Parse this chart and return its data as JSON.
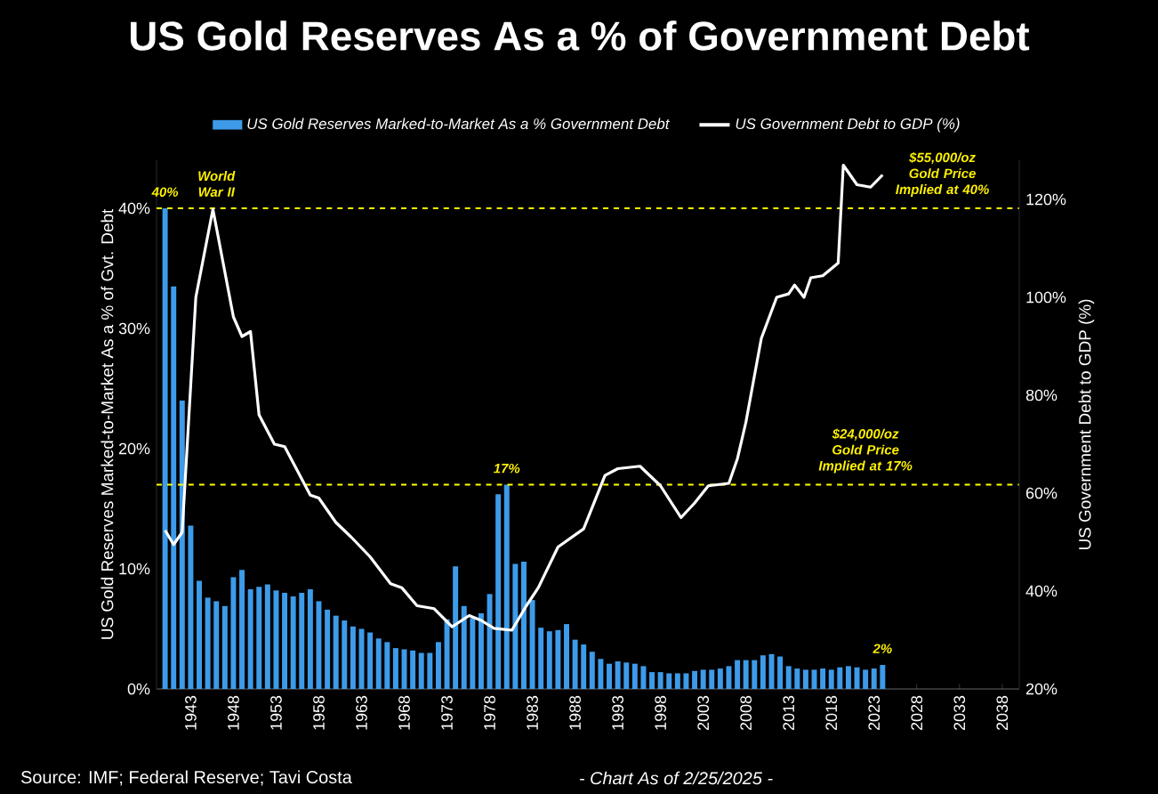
{
  "chart_data": {
    "type": "bar",
    "title": "US Gold Reserves As a % of Government Debt",
    "ylabel": "US Gold Reserves Marked-to-Market As a % of Gvt. Debt",
    "y2label": "US Government Debt to GDP (%)",
    "xlim": [
      1939,
      2040
    ],
    "xticks": [
      1943,
      1948,
      1953,
      1958,
      1963,
      1968,
      1973,
      1978,
      1983,
      1988,
      1993,
      1998,
      2003,
      2008,
      2013,
      2018,
      2023,
      2028,
      2033,
      2038
    ],
    "ylim": [
      0,
      44
    ],
    "yticks": [
      {
        "value": 0,
        "label": "0%"
      },
      {
        "value": 10,
        "label": "10%"
      },
      {
        "value": 20,
        "label": "20%"
      },
      {
        "value": 30,
        "label": "30%"
      },
      {
        "value": 40,
        "label": "40%"
      }
    ],
    "y2lim": [
      20,
      128
    ],
    "y2ticks": [
      {
        "value": 20,
        "label": "20%"
      },
      {
        "value": 40,
        "label": "40%"
      },
      {
        "value": 60,
        "label": "60%"
      },
      {
        "value": 80,
        "label": "80%"
      },
      {
        "value": 100,
        "label": "100%"
      },
      {
        "value": 120,
        "label": "120%"
      }
    ],
    "legend": "top",
    "series": [
      {
        "name": "US Gold Reserves Marked-to-Market As a % Government Debt",
        "type": "bar",
        "color": "#3d9be9",
        "x": [
          1940,
          1941,
          1942,
          1943,
          1944,
          1945,
          1946,
          1947,
          1948,
          1949,
          1950,
          1951,
          1952,
          1953,
          1954,
          1955,
          1956,
          1957,
          1958,
          1959,
          1960,
          1961,
          1962,
          1963,
          1964,
          1965,
          1966,
          1967,
          1968,
          1969,
          1970,
          1971,
          1972,
          1973,
          1974,
          1975,
          1976,
          1977,
          1978,
          1979,
          1980,
          1981,
          1982,
          1983,
          1984,
          1985,
          1986,
          1987,
          1988,
          1989,
          1990,
          1991,
          1992,
          1993,
          1994,
          1995,
          1996,
          1997,
          1998,
          1999,
          2000,
          2001,
          2002,
          2003,
          2004,
          2005,
          2006,
          2007,
          2008,
          2009,
          2010,
          2011,
          2012,
          2013,
          2014,
          2015,
          2016,
          2017,
          2018,
          2019,
          2020,
          2021,
          2022,
          2023,
          2024
        ],
        "values": [
          40,
          33.5,
          24,
          13.6,
          9.0,
          7.6,
          7.3,
          6.9,
          9.3,
          9.9,
          8.3,
          8.5,
          8.7,
          8.2,
          8.0,
          7.7,
          8.0,
          8.3,
          7.3,
          6.6,
          6.1,
          5.7,
          5.2,
          5.0,
          4.7,
          4.2,
          3.9,
          3.4,
          3.3,
          3.2,
          3.0,
          3.0,
          3.9,
          5.8,
          10.2,
          6.9,
          5.9,
          6.3,
          7.9,
          16.2,
          17,
          10.4,
          10.6,
          7.4,
          5.1,
          4.8,
          4.9,
          5.4,
          4.1,
          3.7,
          3.1,
          2.5,
          2.1,
          2.3,
          2.2,
          2.1,
          1.9,
          1.4,
          1.4,
          1.3,
          1.3,
          1.3,
          1.5,
          1.6,
          1.6,
          1.7,
          1.9,
          2.4,
          2.4,
          2.4,
          2.8,
          2.9,
          2.7,
          1.9,
          1.7,
          1.6,
          1.6,
          1.7,
          1.6,
          1.8,
          1.9,
          1.8,
          1.6,
          1.7,
          2
        ]
      },
      {
        "name": "US Government Debt to GDP (%)",
        "type": "line",
        "axis": "y2",
        "color": "#ffffff",
        "line_style": "solid",
        "x": [
          1940,
          1941,
          1942,
          1943.6,
          1945.6,
          1948,
          1949,
          1950,
          1951,
          1952.8,
          1954,
          1957,
          1958,
          1960,
          1961.8,
          1964,
          1966.4,
          1967.7,
          1969.5,
          1971.5,
          1973.6,
          1975.6,
          1977,
          1978.5,
          1980.6,
          1982.3,
          1983.7,
          1986,
          1989,
          1991.5,
          1993,
          1995.6,
          1998,
          2000.4,
          2002,
          2003.6,
          2006,
          2007,
          2008,
          2009.8,
          2011.6,
          2013,
          2013.7,
          2014.8,
          2015.6,
          2017,
          2018.8,
          2019.4,
          2021,
          2022.6,
          2024
        ],
        "values": [
          52.4,
          49.5,
          52,
          100,
          118,
          96,
          92,
          93,
          76,
          70,
          69.5,
          59.6,
          59,
          54,
          51,
          47,
          41.5,
          40.7,
          37,
          36.4,
          32.7,
          35,
          34,
          32.4,
          32,
          37,
          40.7,
          49,
          52.7,
          63.6,
          65,
          65.5,
          61.5,
          55,
          58,
          61.5,
          62,
          67,
          74.5,
          91.6,
          100,
          100.7,
          102.5,
          100,
          104,
          104.4,
          107,
          127,
          123,
          122.5,
          125
        ]
      }
    ],
    "ref_lines": [
      {
        "axis": "y",
        "value": 40,
        "color": "#ffff00",
        "line_style": "dashed"
      },
      {
        "axis": "y",
        "value": 17,
        "color": "#ffff00",
        "line_style": "dashed"
      }
    ],
    "annotations": [
      {
        "text": "40%",
        "x": 1940,
        "y": 40
      },
      {
        "text": "World War II",
        "x": 1946,
        "y": 40
      },
      {
        "text": "17%",
        "x": 1980,
        "y": 17
      },
      {
        "text": "2%",
        "x": 2024,
        "y": 2
      },
      {
        "text": "$24,000/oz Gold Price Implied at 17%",
        "x": 2022,
        "y": 17
      },
      {
        "text": "$55,000/oz Gold Price Implied at 40%",
        "x": 2031,
        "y": 40
      },
      "Source: IMF; Federal Reserve; Tavi Costa",
      "- Chart As of 2/25/2025 -"
    ]
  }
}
